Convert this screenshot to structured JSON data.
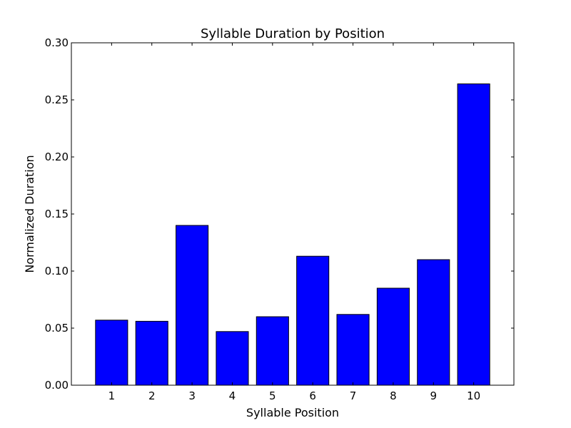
{
  "chart_data": {
    "type": "bar",
    "title": "Syllable Duration by Position",
    "xlabel": "Syllable Position",
    "ylabel": "Normalized Duration",
    "categories": [
      "1",
      "2",
      "3",
      "4",
      "5",
      "6",
      "7",
      "8",
      "9",
      "10"
    ],
    "values": [
      0.057,
      0.056,
      0.14,
      0.047,
      0.06,
      0.113,
      0.062,
      0.085,
      0.11,
      0.264
    ],
    "ylim": [
      0,
      0.3
    ],
    "yticks": [
      0.0,
      0.05,
      0.1,
      0.15,
      0.2,
      0.25,
      0.3
    ],
    "ytick_labels": [
      "0.00",
      "0.05",
      "0.10",
      "0.15",
      "0.20",
      "0.25",
      "0.30"
    ],
    "grid": false,
    "colors": {
      "bar_fill": "#0000ff",
      "bar_edge": "#000000"
    }
  }
}
